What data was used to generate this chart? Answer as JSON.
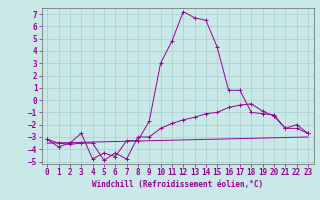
{
  "xlabel": "Windchill (Refroidissement éolien,°C)",
  "bg_color": "#c9e8e8",
  "line_color": "#990099",
  "spine_color": "#666666",
  "grid_color": "#aacece",
  "xlim": [
    -0.5,
    23.5
  ],
  "ylim": [
    -5.2,
    7.5
  ],
  "xticks": [
    0,
    1,
    2,
    3,
    4,
    5,
    6,
    7,
    8,
    9,
    10,
    11,
    12,
    13,
    14,
    15,
    16,
    17,
    18,
    19,
    20,
    21,
    22,
    23
  ],
  "yticks": [
    -5,
    -4,
    -3,
    -2,
    -1,
    0,
    1,
    2,
    3,
    4,
    5,
    6,
    7
  ],
  "main_x": [
    0,
    1,
    2,
    3,
    4,
    5,
    6,
    7,
    8,
    9,
    10,
    11,
    12,
    13,
    14,
    15,
    16,
    17,
    18,
    19,
    20,
    21,
    22,
    23
  ],
  "main_y": [
    -3.2,
    -3.8,
    -3.5,
    -2.7,
    -4.8,
    -4.3,
    -4.6,
    -3.3,
    -3.3,
    -1.7,
    3.0,
    4.8,
    7.2,
    6.7,
    6.5,
    4.3,
    0.8,
    0.8,
    -1.0,
    -1.1,
    -1.2,
    -2.3,
    -2.0,
    -2.7
  ],
  "line2_x": [
    0,
    1,
    2,
    3,
    4,
    5,
    6,
    7,
    8,
    9,
    10,
    11,
    12,
    13,
    14,
    15,
    16,
    17,
    18,
    19,
    20,
    21,
    22,
    23
  ],
  "line2_y": [
    -3.2,
    -3.5,
    -3.6,
    -3.5,
    -3.5,
    -4.9,
    -4.3,
    -4.8,
    -3.0,
    -3.0,
    -2.3,
    -1.9,
    -1.6,
    -1.4,
    -1.1,
    -1.0,
    -0.6,
    -0.4,
    -0.3,
    -0.9,
    -1.3,
    -2.3,
    -2.3,
    -2.7
  ],
  "line3_x": [
    0,
    23
  ],
  "line3_y": [
    -3.5,
    -3.0
  ],
  "xlabel_fontsize": 5.5,
  "tick_fontsize": 5.5
}
